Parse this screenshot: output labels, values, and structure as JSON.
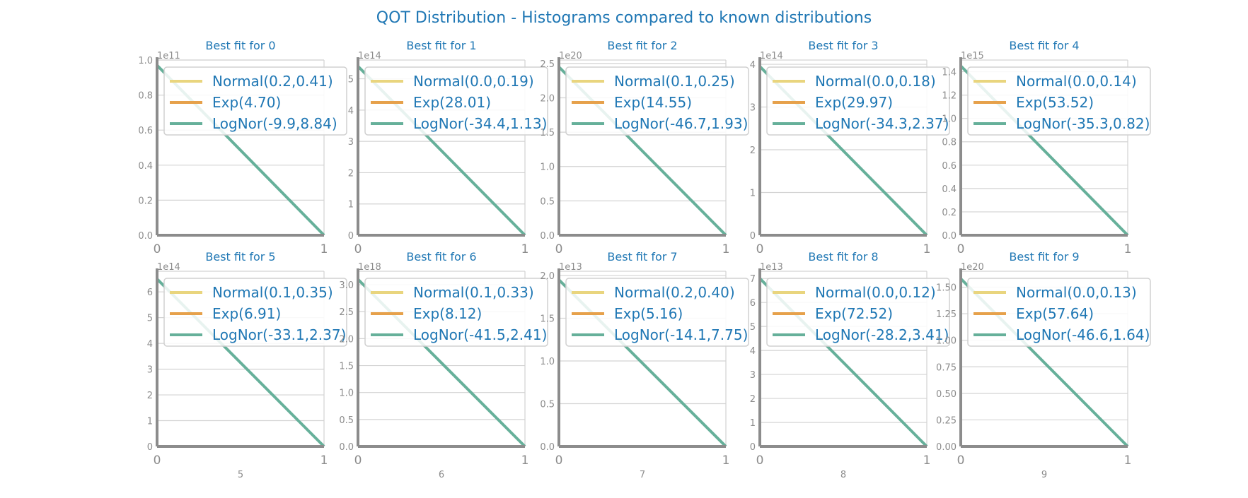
{
  "suptitle": "QOT Distribution - Histograms compared to known distributions",
  "colors": {
    "title": "#1f77b4",
    "normal": "#e9d57e",
    "exp": "#e6a14b",
    "lognorm": "#66b09a",
    "axis": "#8c8c8c",
    "grid": "#d3d3d3",
    "tick_text": "#8c8c8c"
  },
  "chart_data": [
    {
      "type": "line",
      "title": "Best fit for 0",
      "xlabel": "",
      "scale_label": "1e11",
      "xlim": [
        0,
        1
      ],
      "ylim": [
        0,
        1.0
      ],
      "yticks": [
        "0.0",
        "0.2",
        "0.4",
        "0.6",
        "0.8",
        "1.0"
      ],
      "ytick_values": [
        0,
        0.2,
        0.4,
        0.6,
        0.8,
        1.0
      ],
      "xticks": [
        "0",
        "1"
      ],
      "grid": true,
      "legend": "upper right",
      "series": [
        {
          "name": "Normal(0.2,0.41)",
          "x": [
            0,
            1
          ],
          "y": [
            null,
            null
          ]
        },
        {
          "name": "Exp(4.70)",
          "x": [
            0,
            1
          ],
          "y": [
            null,
            null
          ]
        },
        {
          "name": "LogNor(-9.9,8.84)",
          "x": [
            0,
            1
          ],
          "y": [
            0.97,
            0
          ]
        }
      ]
    },
    {
      "type": "line",
      "title": "Best fit for 1",
      "xlabel": "",
      "scale_label": "1e14",
      "xlim": [
        0,
        1
      ],
      "ylim": [
        0,
        5.6
      ],
      "yticks": [
        "0",
        "1",
        "2",
        "3",
        "4",
        "5"
      ],
      "ytick_values": [
        0,
        1,
        2,
        3,
        4,
        5
      ],
      "xticks": [
        "0",
        "1"
      ],
      "grid": true,
      "legend": "upper right",
      "series": [
        {
          "name": "Normal(0.0,0.19)",
          "x": [
            0,
            1
          ],
          "y": [
            null,
            null
          ]
        },
        {
          "name": "Exp(28.01)",
          "x": [
            0,
            1
          ],
          "y": [
            null,
            null
          ]
        },
        {
          "name": "LogNor(-34.4,1.13)",
          "x": [
            0,
            1
          ],
          "y": [
            5.4,
            0
          ]
        }
      ]
    },
    {
      "type": "line",
      "title": "Best fit for 2",
      "xlabel": "",
      "scale_label": "1e20",
      "xlim": [
        0,
        1
      ],
      "ylim": [
        0,
        2.55
      ],
      "yticks": [
        "0.0",
        "0.5",
        "1.0",
        "1.5",
        "2.0",
        "2.5"
      ],
      "ytick_values": [
        0,
        0.5,
        1.0,
        1.5,
        2.0,
        2.5
      ],
      "xticks": [
        "0",
        "1"
      ],
      "grid": true,
      "legend": "upper right",
      "series": [
        {
          "name": "Normal(0.1,0.25)",
          "x": [
            0,
            1
          ],
          "y": [
            null,
            null
          ]
        },
        {
          "name": "Exp(14.55)",
          "x": [
            0,
            1
          ],
          "y": [
            null,
            null
          ]
        },
        {
          "name": "LogNor(-46.7,1.93)",
          "x": [
            0,
            1
          ],
          "y": [
            2.45,
            0
          ]
        }
      ]
    },
    {
      "type": "line",
      "title": "Best fit for 3",
      "xlabel": "",
      "scale_label": "1e14",
      "xlim": [
        0,
        1
      ],
      "ylim": [
        0,
        4.1
      ],
      "yticks": [
        "0",
        "1",
        "2",
        "3",
        "4"
      ],
      "ytick_values": [
        0,
        1,
        2,
        3,
        4
      ],
      "xticks": [
        "0",
        "1"
      ],
      "grid": true,
      "legend": "upper right",
      "series": [
        {
          "name": "Normal(0.0,0.18)",
          "x": [
            0,
            1
          ],
          "y": [
            null,
            null
          ]
        },
        {
          "name": "Exp(29.97)",
          "x": [
            0,
            1
          ],
          "y": [
            null,
            null
          ]
        },
        {
          "name": "LogNor(-34.3,2.37)",
          "x": [
            0,
            1
          ],
          "y": [
            3.95,
            0
          ]
        }
      ]
    },
    {
      "type": "line",
      "title": "Best fit for 4",
      "xlabel": "",
      "scale_label": "1e15",
      "xlim": [
        0,
        1
      ],
      "ylim": [
        0,
        1.5
      ],
      "yticks": [
        "0.0",
        "0.2",
        "0.4",
        "0.6",
        "0.8",
        "1.0",
        "1.2",
        "1.4"
      ],
      "ytick_values": [
        0,
        0.2,
        0.4,
        0.6,
        0.8,
        1.0,
        1.2,
        1.4
      ],
      "xticks": [
        "0",
        "1"
      ],
      "grid": true,
      "legend": "upper right",
      "series": [
        {
          "name": "Normal(0.0,0.14)",
          "x": [
            0,
            1
          ],
          "y": [
            null,
            null
          ]
        },
        {
          "name": "Exp(53.52)",
          "x": [
            0,
            1
          ],
          "y": [
            null,
            null
          ]
        },
        {
          "name": "LogNor(-35.3,0.82)",
          "x": [
            0,
            1
          ],
          "y": [
            1.45,
            0
          ]
        }
      ]
    },
    {
      "type": "line",
      "title": "Best fit for 5",
      "xlabel": "5",
      "scale_label": "1e14",
      "xlim": [
        0,
        1
      ],
      "ylim": [
        0,
        6.8
      ],
      "yticks": [
        "0",
        "1",
        "2",
        "3",
        "4",
        "5",
        "6"
      ],
      "ytick_values": [
        0,
        1,
        2,
        3,
        4,
        5,
        6
      ],
      "xticks": [
        "0",
        "1"
      ],
      "grid": true,
      "legend": "upper right",
      "series": [
        {
          "name": "Normal(0.1,0.35)",
          "x": [
            0,
            1
          ],
          "y": [
            null,
            null
          ]
        },
        {
          "name": "Exp(6.91)",
          "x": [
            0,
            1
          ],
          "y": [
            null,
            null
          ]
        },
        {
          "name": "LogNor(-33.1,2.37)",
          "x": [
            0,
            1
          ],
          "y": [
            6.5,
            0
          ]
        }
      ]
    },
    {
      "type": "line",
      "title": "Best fit for 6",
      "xlabel": "6",
      "scale_label": "1e18",
      "xlim": [
        0,
        1
      ],
      "ylim": [
        0,
        3.25
      ],
      "yticks": [
        "0.0",
        "0.5",
        "1.0",
        "1.5",
        "2.0",
        "2.5",
        "3.0"
      ],
      "ytick_values": [
        0,
        0.5,
        1.0,
        1.5,
        2.0,
        2.5,
        3.0
      ],
      "xticks": [
        "0",
        "1"
      ],
      "grid": true,
      "legend": "upper right",
      "series": [
        {
          "name": "Normal(0.1,0.33)",
          "x": [
            0,
            1
          ],
          "y": [
            null,
            null
          ]
        },
        {
          "name": "Exp(8.12)",
          "x": [
            0,
            1
          ],
          "y": [
            null,
            null
          ]
        },
        {
          "name": "LogNor(-41.5,2.41)",
          "x": [
            0,
            1
          ],
          "y": [
            3.1,
            0
          ]
        }
      ]
    },
    {
      "type": "line",
      "title": "Best fit for 7",
      "xlabel": "7",
      "scale_label": "1e13",
      "xlim": [
        0,
        1
      ],
      "ylim": [
        0,
        2.05
      ],
      "yticks": [
        "0.0",
        "0.5",
        "1.0",
        "1.5",
        "2.0"
      ],
      "ytick_values": [
        0,
        0.5,
        1.0,
        1.5,
        2.0
      ],
      "xticks": [
        "0",
        "1"
      ],
      "grid": true,
      "legend": "upper right",
      "series": [
        {
          "name": "Normal(0.2,0.40)",
          "x": [
            0,
            1
          ],
          "y": [
            null,
            null
          ]
        },
        {
          "name": "Exp(5.16)",
          "x": [
            0,
            1
          ],
          "y": [
            null,
            null
          ]
        },
        {
          "name": "LogNor(-14.1,7.75)",
          "x": [
            0,
            1
          ],
          "y": [
            1.95,
            0
          ]
        }
      ]
    },
    {
      "type": "line",
      "title": "Best fit for 8",
      "xlabel": "8",
      "scale_label": "1e13",
      "xlim": [
        0,
        1
      ],
      "ylim": [
        0,
        7.3
      ],
      "yticks": [
        "0",
        "1",
        "2",
        "3",
        "4",
        "5",
        "6",
        "7"
      ],
      "ytick_values": [
        0,
        1,
        2,
        3,
        4,
        5,
        6,
        7
      ],
      "xticks": [
        "0",
        "1"
      ],
      "grid": true,
      "legend": "upper right",
      "series": [
        {
          "name": "Normal(0.0,0.12)",
          "x": [
            0,
            1
          ],
          "y": [
            null,
            null
          ]
        },
        {
          "name": "Exp(72.52)",
          "x": [
            0,
            1
          ],
          "y": [
            null,
            null
          ]
        },
        {
          "name": "LogNor(-28.2,3.41)",
          "x": [
            0,
            1
          ],
          "y": [
            7.0,
            0
          ]
        }
      ]
    },
    {
      "type": "line",
      "title": "Best fit for 9",
      "xlabel": "9",
      "scale_label": "1e20",
      "xlim": [
        0,
        1
      ],
      "ylim": [
        0,
        1.65
      ],
      "yticks": [
        "0.00",
        "0.25",
        "0.50",
        "0.75",
        "1.00",
        "1.25",
        "1.50"
      ],
      "ytick_values": [
        0,
        0.25,
        0.5,
        0.75,
        1.0,
        1.25,
        1.5
      ],
      "xticks": [
        "0",
        "1"
      ],
      "grid": true,
      "legend": "upper right",
      "series": [
        {
          "name": "Normal(0.0,0.13)",
          "x": [
            0,
            1
          ],
          "y": [
            null,
            null
          ]
        },
        {
          "name": "Exp(57.64)",
          "x": [
            0,
            1
          ],
          "y": [
            null,
            null
          ]
        },
        {
          "name": "LogNor(-46.6,1.64)",
          "x": [
            0,
            1
          ],
          "y": [
            1.58,
            0
          ]
        }
      ]
    }
  ]
}
